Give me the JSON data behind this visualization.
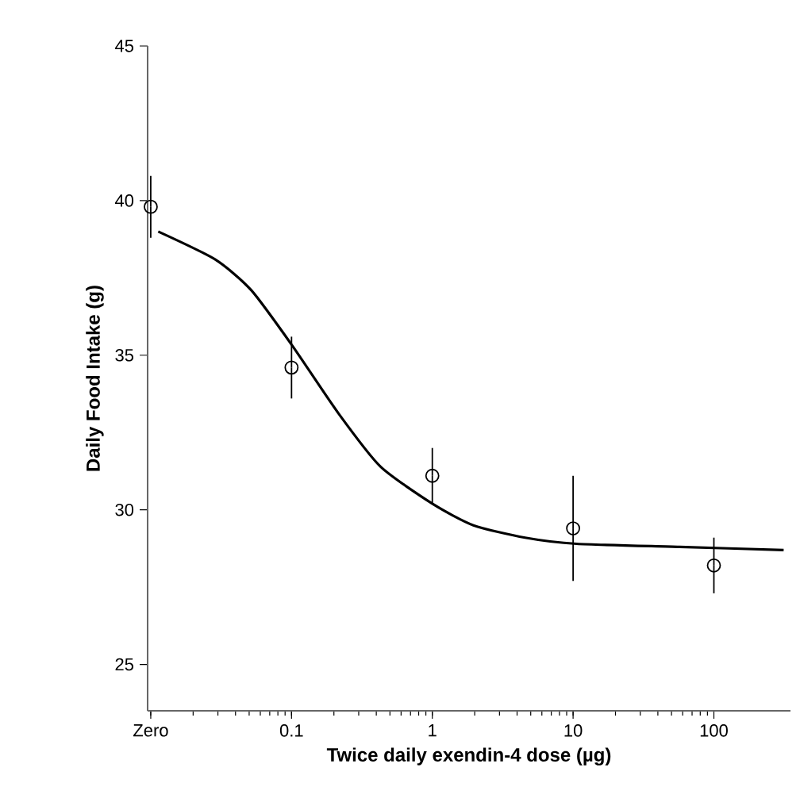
{
  "chart_data": {
    "type": "scatter",
    "xlabel": "Twice daily exendin-4 dose (µg)",
    "ylabel": "Daily Food Intake (g)",
    "log": "x",
    "xlim": [
      0.0095,
      350
    ],
    "ylim": [
      23.5,
      45
    ],
    "xticks": [
      {
        "value": 0.01,
        "label": "Zero"
      },
      0.1,
      1,
      10,
      100
    ],
    "yticks": [
      25,
      30,
      35,
      40,
      45
    ],
    "marker": "circle",
    "series": [
      {
        "color": "#000000",
        "x": [
          0.01,
          0.1,
          1,
          10,
          100
        ],
        "values": [
          39.8,
          34.6,
          31.1,
          29.4,
          28.2
        ],
        "errors": [
          1.0,
          1.0,
          0.9,
          1.7,
          0.9
        ]
      },
      {
        "type": "line",
        "color": "#000000",
        "line_style": "solid",
        "marker": "none",
        "x": [
          0.0113,
          0.0286,
          0.0518,
          0.1016,
          0.217,
          0.428,
          1.0,
          1.96,
          4.56,
          10.6,
          57,
          313
        ],
        "values": [
          39.0,
          38.1,
          37.1,
          35.3,
          33.1,
          31.4,
          30.2,
          29.5,
          29.1,
          28.9,
          28.8,
          28.7
        ]
      }
    ]
  }
}
